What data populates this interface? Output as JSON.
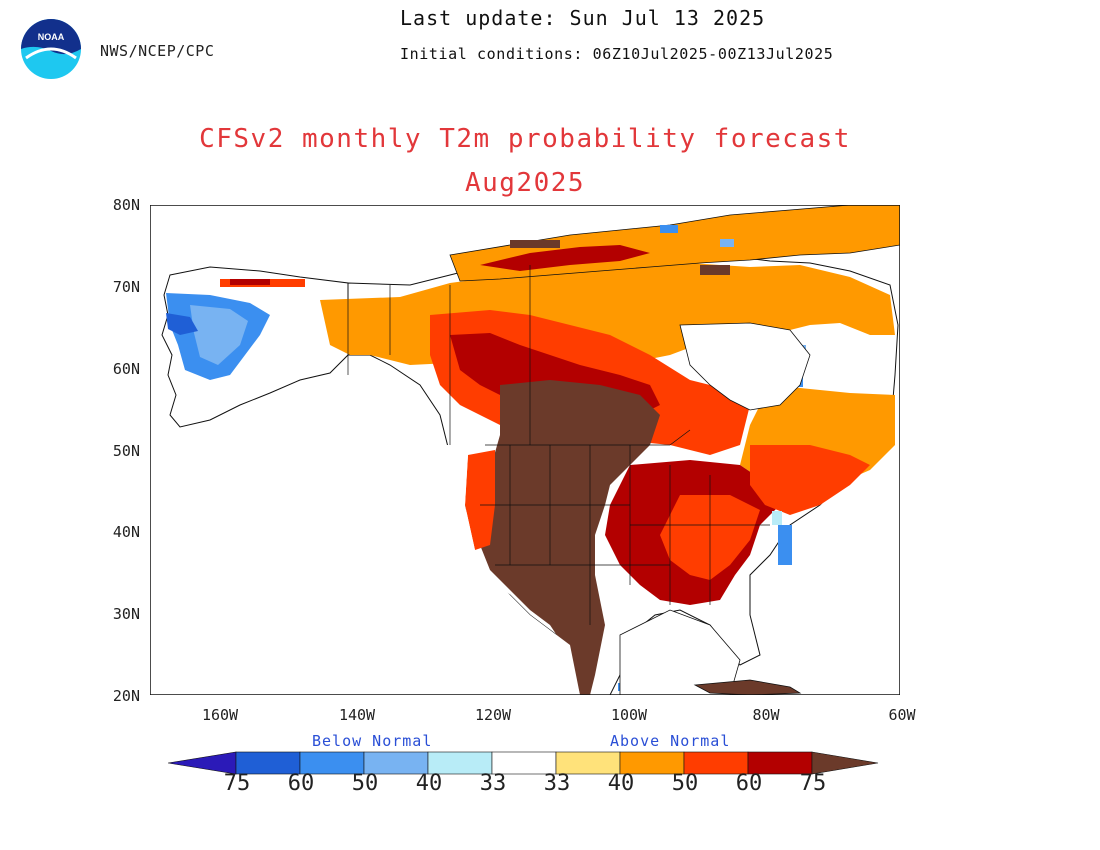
{
  "header": {
    "agency": "NWS/NCEP/CPC",
    "last_update": "Last update: Sun Jul 13 2025",
    "initial_conditions": "Initial conditions: 06Z10Jul2025-00Z13Jul2025"
  },
  "logo": {
    "text": "NOAA",
    "name": "noaa-logo"
  },
  "title": {
    "line1": "CFSv2 monthly T2m probability forecast",
    "line2": "Aug2025"
  },
  "axes": {
    "lat_labels": [
      "80N",
      "70N",
      "60N",
      "50N",
      "40N",
      "30N",
      "20N"
    ],
    "lon_labels": [
      "160W",
      "140W",
      "120W",
      "100W",
      "80W",
      "60W"
    ]
  },
  "legend": {
    "below_label": "Below Normal",
    "above_label": "Above Normal",
    "values": [
      "75",
      "60",
      "50",
      "40",
      "33",
      "33",
      "40",
      "50",
      "60",
      "75"
    ],
    "colors": [
      "#2b1ab8",
      "#1f5fd6",
      "#3b8ff0",
      "#78b3f2",
      "#b8ecf7",
      "#ffffff",
      "#ffe27a",
      "#ff9900",
      "#ff3d00",
      "#b30000",
      "#6b3a2a"
    ]
  },
  "colors": {
    "title": "#e2373a",
    "strong_above": "#6b3a2a",
    "above_60": "#b30000",
    "above_50": "#ff3d00",
    "above_40": "#ff9900",
    "above_33": "#ffe27a",
    "below_40": "#78b3f2",
    "below_50": "#3b8ff0",
    "below_60": "#1f5fd6"
  }
}
